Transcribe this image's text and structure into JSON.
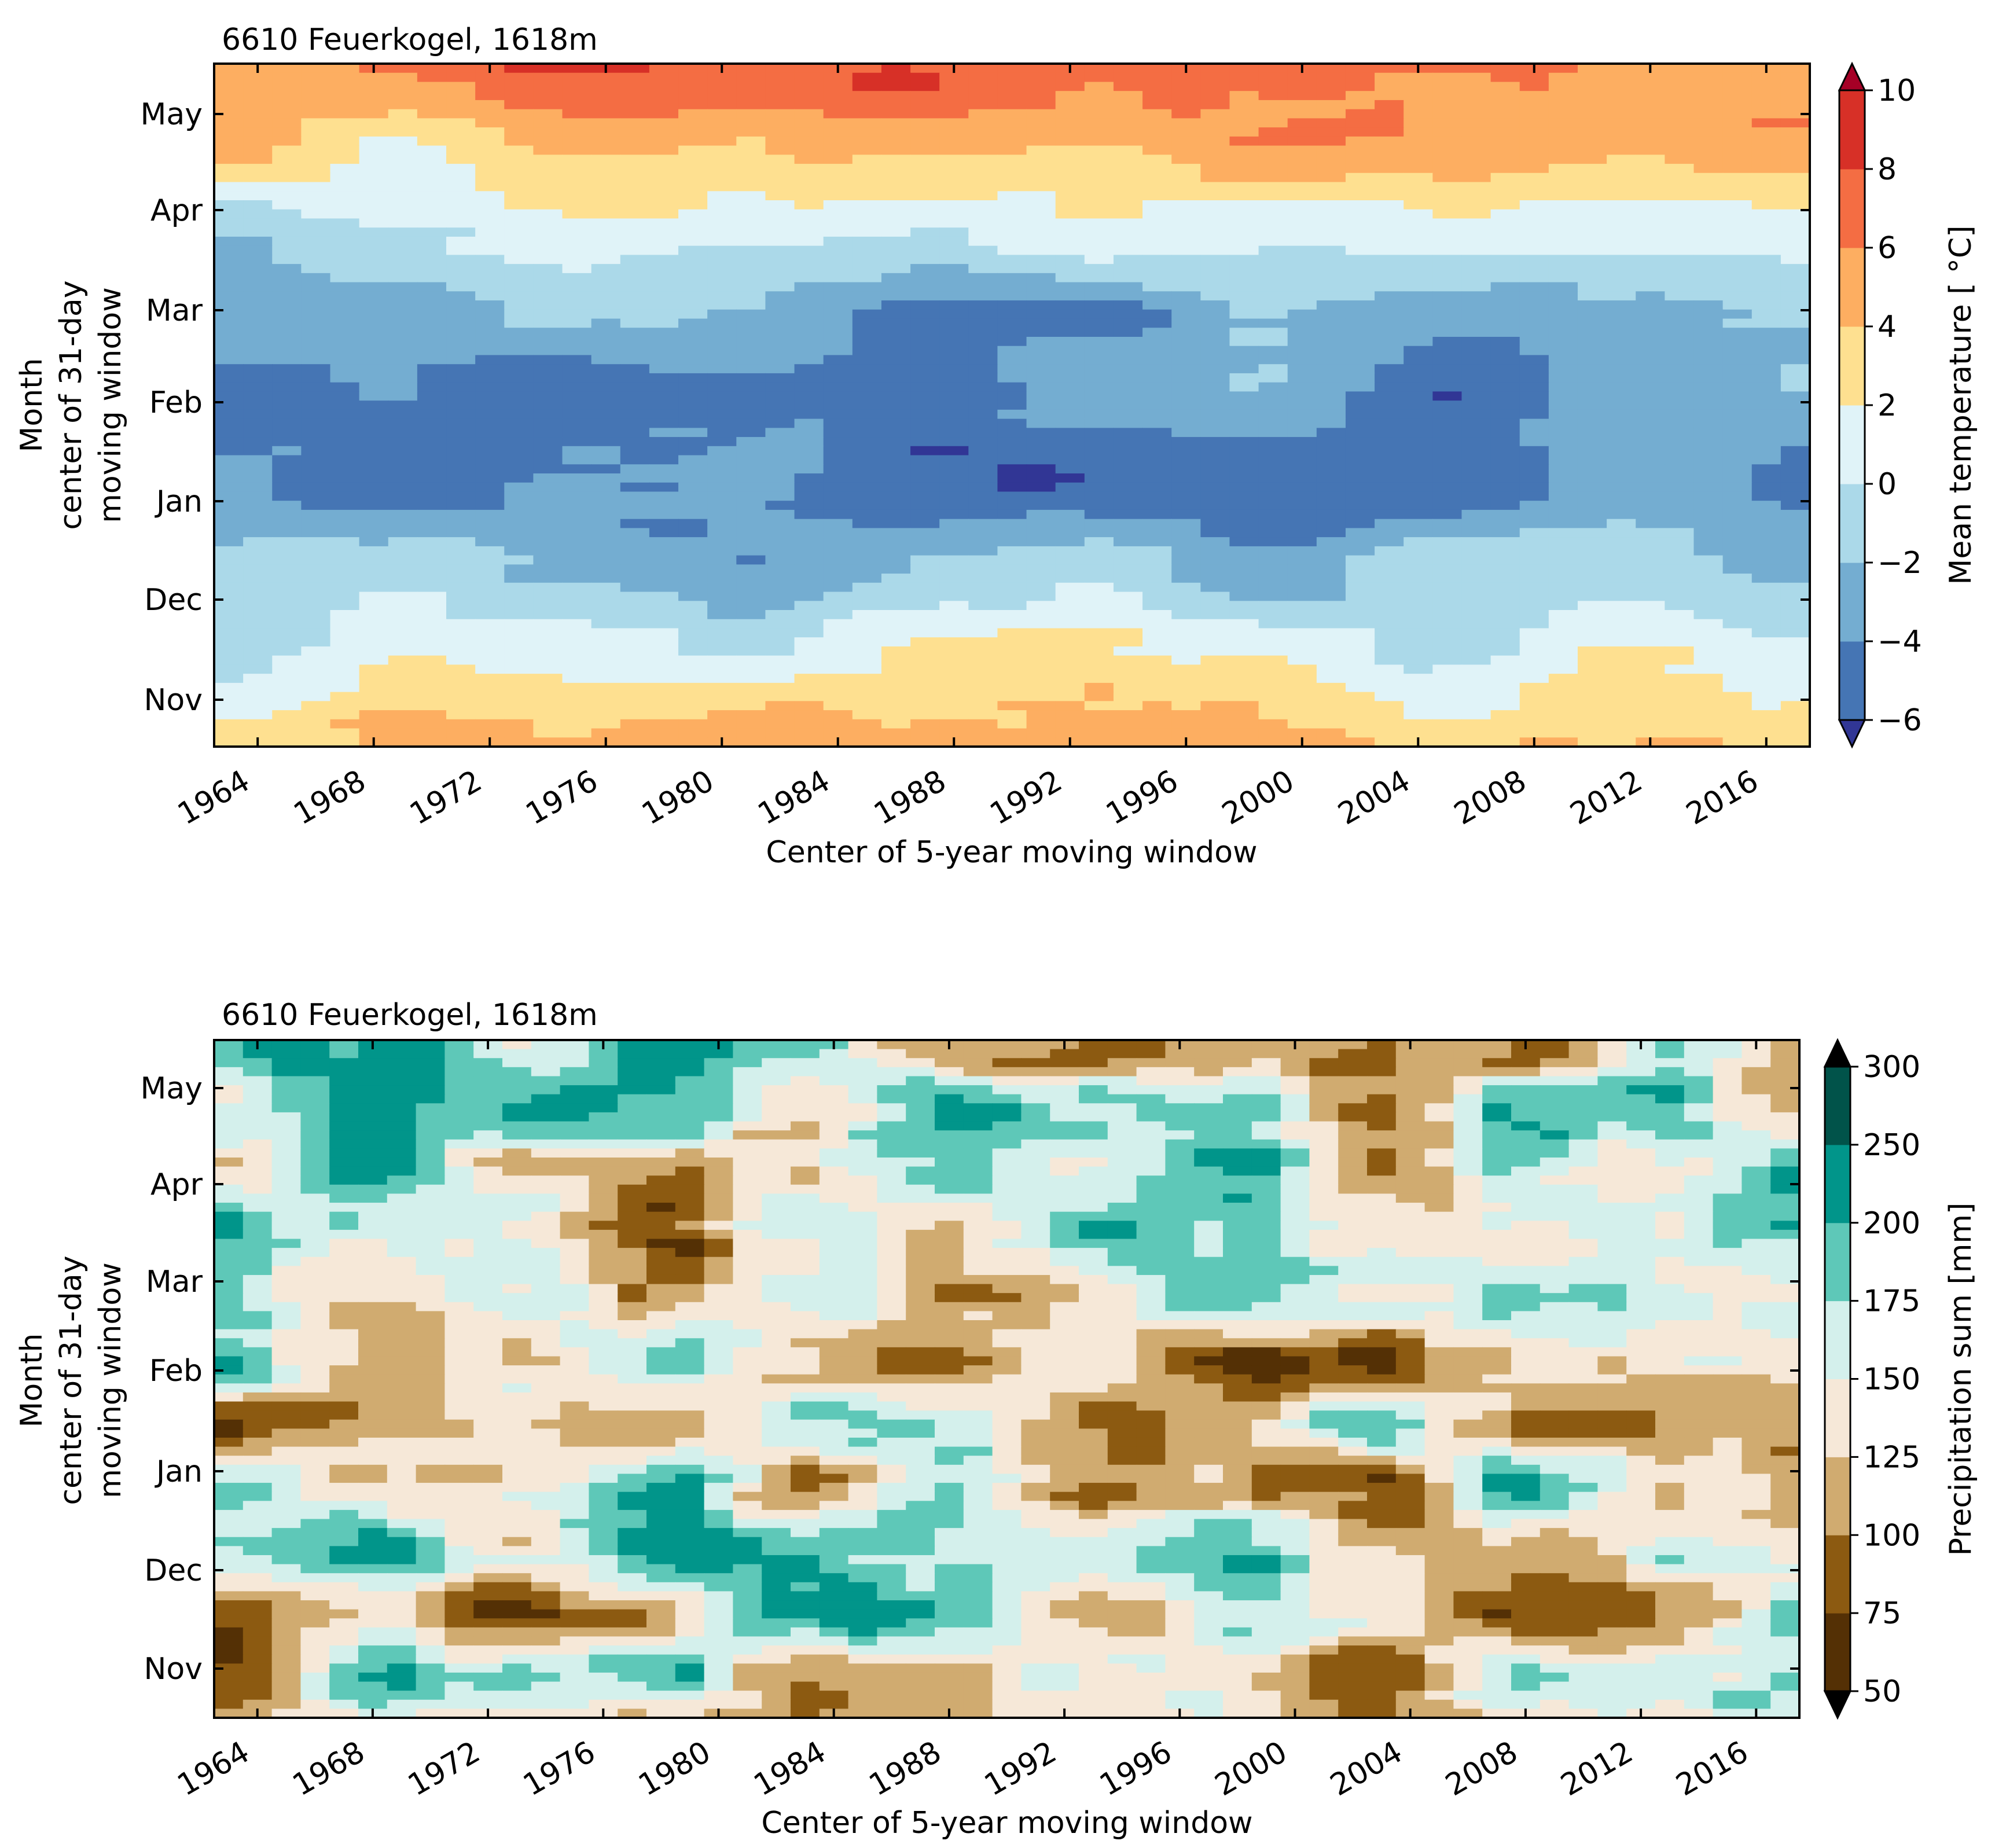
{
  "chart_data": [
    {
      "type": "heatmap",
      "title": "6610 Feuerkogel, 1618m",
      "xlabel": "Center of 5-year moving window",
      "ylabel_lines": [
        "Month",
        "center of 31-day",
        "moving window"
      ],
      "x_ticks": [
        "1964",
        "1968",
        "1972",
        "1976",
        "1980",
        "1984",
        "1988",
        "1992",
        "1996",
        "2000",
        "2004",
        "2008",
        "2012",
        "2016"
      ],
      "y_ticks": [
        "Nov",
        "Dec",
        "Jan",
        "Feb",
        "Mar",
        "Apr",
        "May"
      ],
      "x_range": [
        1963,
        2018
      ],
      "colorbar": {
        "label": "Mean temperature [$^\\circ$C]",
        "label_display": "Mean temperature [ °C]",
        "ticks": [
          "−6",
          "−4",
          "−2",
          "0",
          "2",
          "4",
          "6",
          "8",
          "10"
        ],
        "boundaries": [
          -6,
          -4,
          -2,
          0,
          2,
          4,
          6,
          8,
          10
        ],
        "colors": [
          "#313695",
          "#4575b4",
          "#74add1",
          "#abd9e9",
          "#e0f3f8",
          "#fee090",
          "#fdae61",
          "#f46d43",
          "#d73027",
          "#a50026"
        ],
        "extend": "both"
      },
      "climatology": {
        "months": [
          "Nov",
          "Dec",
          "Jan",
          "Feb",
          "Mar",
          "Apr",
          "May"
        ],
        "values": [
          2.5,
          -1.5,
          -4.0,
          -4.0,
          -2.5,
          0.8,
          5.0
        ]
      }
    },
    {
      "type": "heatmap",
      "title": "6610 Feuerkogel, 1618m",
      "xlabel": "Center of 5-year moving window",
      "ylabel_lines": [
        "Month",
        "center of 31-day",
        "moving window"
      ],
      "x_ticks": [
        "1964",
        "1968",
        "1972",
        "1976",
        "1980",
        "1984",
        "1988",
        "1992",
        "1996",
        "2000",
        "2004",
        "2008",
        "2012",
        "2016"
      ],
      "y_ticks": [
        "Nov",
        "Dec",
        "Jan",
        "Feb",
        "Mar",
        "Apr",
        "May"
      ],
      "x_range": [
        1963,
        2018
      ],
      "colorbar": {
        "label": "Precipitation sum [mm]",
        "ticks": [
          "50",
          "75",
          "100",
          "125",
          "150",
          "175",
          "200",
          "250",
          "300"
        ],
        "boundaries": [
          50,
          75,
          100,
          125,
          150,
          175,
          200,
          250,
          300
        ],
        "colors": [
          "#000000",
          "#543005",
          "#8c5a11",
          "#d0ab70",
          "#f6e8d8",
          "#d4f0ec",
          "#5ec8b8",
          "#01958a",
          "#01534a",
          "#000000"
        ],
        "extend": "both"
      },
      "climatology": {
        "months": [
          "Nov",
          "Dec",
          "Jan",
          "Feb",
          "Mar",
          "Apr",
          "May"
        ],
        "values": [
          135,
          150,
          140,
          140,
          130,
          150,
          150
        ]
      }
    }
  ]
}
